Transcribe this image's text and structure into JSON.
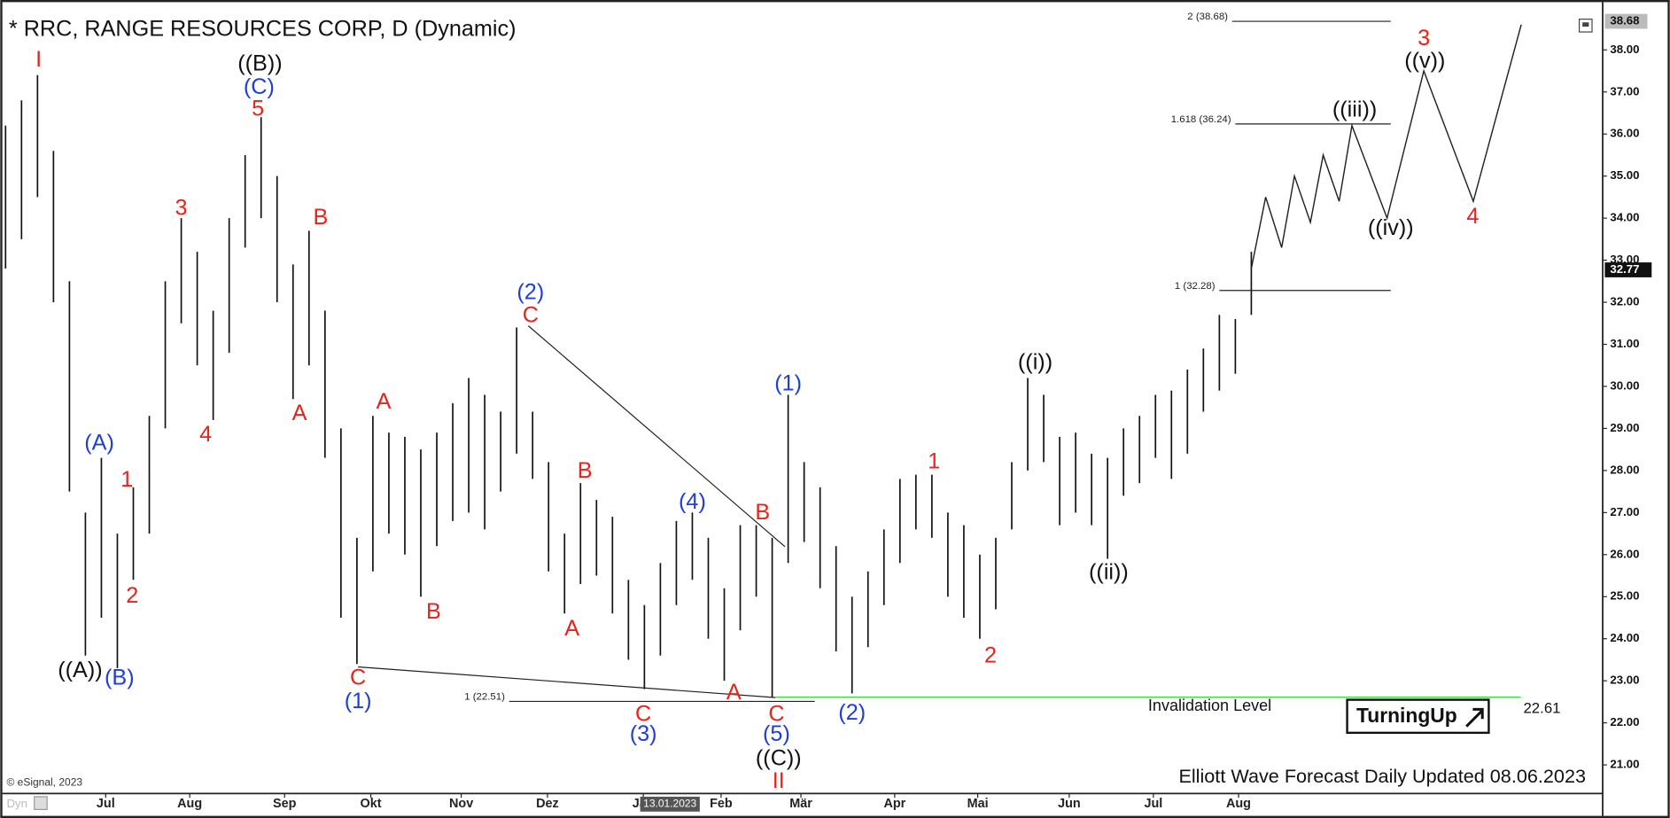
{
  "chart_data": {
    "type": "ohlc",
    "title": "* RRC, RANGE RESOURCES CORP, D (Dynamic)",
    "copyright": "© eSignal, 2023",
    "footer": "Elliott Wave Forecast Daily Updated 08.06.2023",
    "logo": "TurningUp",
    "corner_label": "Dyn",
    "xlim": [
      0,
      100
    ],
    "ylim": [
      20.32,
      39.06
    ],
    "yticks": [
      {
        "value": 21,
        "label": "21.00"
      },
      {
        "value": 22,
        "label": "22.00"
      },
      {
        "value": 23,
        "label": "23.00"
      },
      {
        "value": 24,
        "label": "24.00"
      },
      {
        "value": 25,
        "label": "25.00"
      },
      {
        "value": 26,
        "label": "26.00"
      },
      {
        "value": 27,
        "label": "27.00"
      },
      {
        "value": 28,
        "label": "28.00"
      },
      {
        "value": 29,
        "label": "29.00"
      },
      {
        "value": 30,
        "label": "30.00"
      },
      {
        "value": 31,
        "label": "31.00"
      },
      {
        "value": 32,
        "label": "32.00"
      },
      {
        "value": 33,
        "label": "33.00"
      },
      {
        "value": 34,
        "label": "34.00"
      },
      {
        "value": 35,
        "label": "35.00"
      },
      {
        "value": 36,
        "label": "36.00"
      },
      {
        "value": 37,
        "label": "37.00"
      },
      {
        "value": 38,
        "label": "38.00"
      }
    ],
    "xticks": [
      {
        "value": 6.27,
        "label": "Jul"
      },
      {
        "value": 11.53,
        "label": "Aug"
      },
      {
        "value": 17.47,
        "label": "Sep"
      },
      {
        "value": 22.87,
        "label": "Okt"
      },
      {
        "value": 28.53,
        "label": "Nov"
      },
      {
        "value": 33.93,
        "label": "Dez"
      },
      {
        "value": 39.93,
        "label": "Jan"
      },
      {
        "value": 44.8,
        "label": "Feb"
      },
      {
        "value": 49.8,
        "label": "Mär"
      },
      {
        "value": 55.67,
        "label": "Apr"
      },
      {
        "value": 60.87,
        "label": "Mai"
      },
      {
        "value": 66.6,
        "label": "Jun"
      },
      {
        "value": 71.87,
        "label": "Jul"
      },
      {
        "value": 77.2,
        "label": "Aug"
      }
    ],
    "cursor_date": {
      "label": "13.01.2023",
      "x": 41.6
    },
    "bar_color": "#111111",
    "low": [
      32.8,
      33.5,
      34.5,
      32.0,
      27.5,
      23.6,
      24.5,
      23.3,
      25.4,
      26.5,
      29.0,
      31.5,
      30.5,
      29.2,
      30.8,
      33.3,
      34.0,
      32.0,
      29.7,
      30.5,
      28.3,
      24.5,
      23.4,
      25.6,
      26.5,
      26.0,
      25.0,
      26.2,
      26.8,
      27.0,
      26.6,
      27.5,
      28.4,
      27.8,
      25.6,
      24.6,
      25.3,
      25.5,
      24.6,
      23.5,
      22.8,
      23.6,
      24.8,
      25.4,
      24.0,
      23.0,
      24.2,
      25.0,
      22.6,
      25.8,
      26.3,
      25.2,
      23.7,
      22.7,
      23.8,
      24.8,
      25.8,
      26.6,
      26.4,
      25.0,
      24.5,
      24.0,
      24.7,
      26.6,
      28.0,
      28.2,
      26.7,
      27.0,
      26.7,
      25.9,
      27.4,
      27.7,
      28.3,
      27.8,
      28.4,
      29.4,
      29.9,
      30.3,
      31.7
    ],
    "high": [
      36.2,
      36.8,
      37.4,
      35.6,
      32.5,
      27.0,
      28.3,
      26.5,
      27.6,
      29.3,
      32.5,
      34.0,
      33.2,
      31.8,
      34.0,
      35.5,
      36.4,
      35.0,
      32.9,
      33.7,
      31.8,
      29.0,
      26.4,
      29.3,
      28.9,
      28.8,
      28.5,
      28.9,
      29.6,
      30.2,
      29.8,
      29.4,
      31.4,
      29.4,
      28.2,
      26.5,
      27.7,
      27.3,
      26.9,
      25.4,
      24.8,
      25.8,
      26.8,
      27.0,
      26.4,
      25.2,
      26.7,
      26.7,
      26.4,
      29.8,
      28.2,
      27.6,
      26.2,
      25.0,
      25.6,
      26.6,
      27.8,
      27.9,
      27.9,
      27.0,
      26.7,
      26.0,
      26.4,
      28.2,
      30.2,
      29.8,
      28.8,
      28.9,
      28.4,
      28.3,
      29.0,
      29.3,
      29.8,
      29.9,
      30.4,
      30.9,
      31.7,
      31.6,
      33.2
    ],
    "last_price": 32.77,
    "axis_marker": 38.68,
    "forecast": {
      "color": "#222222",
      "x": [
        78,
        78.9,
        79.9,
        80.7,
        81.7,
        82.5,
        83.5,
        84.3,
        86.5,
        88.8,
        91.9,
        94.9
      ],
      "y": [
        32.8,
        34.5,
        33.3,
        35.0,
        33.9,
        35.5,
        34.4,
        36.2,
        34.0,
        37.5,
        34.4,
        38.6
      ]
    },
    "trendlines": [
      {
        "x": [
          22.07,
          48.2
        ],
        "y": [
          23.33,
          22.6
        ]
      },
      {
        "x": [
          32.73,
          48.8
        ],
        "y": [
          31.44,
          26.19
        ]
      }
    ],
    "fib_levels": [
      {
        "label": "2 (38.68)",
        "value": 38.68,
        "x": [
          76.8,
          86.73
        ]
      },
      {
        "label": "1.618 (36.24)",
        "value": 36.24,
        "x": [
          77.0,
          86.73
        ]
      },
      {
        "label": "1 (32.28)",
        "value": 32.28,
        "x": [
          76.0,
          86.73
        ]
      },
      {
        "label": "1 (22.51)",
        "value": 22.51,
        "x": [
          31.53,
          50.67
        ]
      }
    ],
    "invalidation": {
      "text": "Invalidation Level",
      "value": 22.61,
      "color": "#3ddc3d",
      "x": [
        48.2,
        94.87
      ]
    },
    "annotations": [
      {
        "text": "I",
        "x": 2.07,
        "y": 37.75,
        "color": "#e8231c"
      },
      {
        "text": "((A))",
        "x": 4.67,
        "y": 23.23,
        "color": "#111111"
      },
      {
        "text": "(A)",
        "x": 5.87,
        "y": 28.63,
        "color": "#1f3fd6"
      },
      {
        "text": "(B)",
        "x": 7.13,
        "y": 23.05,
        "color": "#1f3fd6"
      },
      {
        "text": "1",
        "x": 7.6,
        "y": 27.76,
        "color": "#e8231c"
      },
      {
        "text": "2",
        "x": 7.93,
        "y": 25.0,
        "color": "#e8231c"
      },
      {
        "text": "3",
        "x": 11.0,
        "y": 34.22,
        "color": "#e8231c"
      },
      {
        "text": "4",
        "x": 12.53,
        "y": 28.83,
        "color": "#e8231c"
      },
      {
        "text": "((B))",
        "x": 15.93,
        "y": 37.65,
        "color": "#111111"
      },
      {
        "text": "(C)",
        "x": 15.87,
        "y": 37.09,
        "color": "#1f3fd6"
      },
      {
        "text": "5",
        "x": 15.8,
        "y": 36.58,
        "color": "#e8231c"
      },
      {
        "text": "B",
        "x": 19.73,
        "y": 34.0,
        "color": "#e8231c"
      },
      {
        "text": "A",
        "x": 18.4,
        "y": 29.34,
        "color": "#e8231c"
      },
      {
        "text": "C",
        "x": 22.07,
        "y": 23.05,
        "color": "#e8231c"
      },
      {
        "text": "(1)",
        "x": 22.07,
        "y": 22.49,
        "color": "#1f3fd6"
      },
      {
        "text": "A",
        "x": 23.67,
        "y": 29.61,
        "color": "#e8231c"
      },
      {
        "text": "B",
        "x": 26.8,
        "y": 24.62,
        "color": "#e8231c"
      },
      {
        "text": "(2)",
        "x": 32.87,
        "y": 32.22,
        "color": "#1f3fd6"
      },
      {
        "text": "C",
        "x": 32.87,
        "y": 31.67,
        "color": "#e8231c"
      },
      {
        "text": "B",
        "x": 36.27,
        "y": 27.97,
        "color": "#e8231c"
      },
      {
        "text": "A",
        "x": 35.47,
        "y": 24.22,
        "color": "#e8231c"
      },
      {
        "text": "C",
        "x": 39.93,
        "y": 22.19,
        "color": "#e8231c"
      },
      {
        "text": "(3)",
        "x": 39.93,
        "y": 21.71,
        "color": "#1f3fd6"
      },
      {
        "text": "(4)",
        "x": 43.0,
        "y": 27.23,
        "color": "#1f3fd6"
      },
      {
        "text": "A",
        "x": 45.6,
        "y": 22.7,
        "color": "#e8231c"
      },
      {
        "text": "B",
        "x": 47.4,
        "y": 26.98,
        "color": "#e8231c"
      },
      {
        "text": "C",
        "x": 48.27,
        "y": 22.19,
        "color": "#e8231c"
      },
      {
        "text": "(5)",
        "x": 48.27,
        "y": 21.71,
        "color": "#1f3fd6"
      },
      {
        "text": "((C))",
        "x": 48.4,
        "y": 21.13,
        "color": "#111111"
      },
      {
        "text": "II",
        "x": 48.4,
        "y": 20.59,
        "color": "#e8231c"
      },
      {
        "text": "(1)",
        "x": 49.0,
        "y": 30.04,
        "color": "#1f3fd6"
      },
      {
        "text": "(2)",
        "x": 53.0,
        "y": 22.22,
        "color": "#1f3fd6"
      },
      {
        "text": "1",
        "x": 58.13,
        "y": 28.19,
        "color": "#e8231c"
      },
      {
        "text": "2",
        "x": 61.67,
        "y": 23.58,
        "color": "#e8231c"
      },
      {
        "text": "((i))",
        "x": 64.47,
        "y": 30.55,
        "color": "#111111"
      },
      {
        "text": "((ii))",
        "x": 69.07,
        "y": 25.56,
        "color": "#111111"
      },
      {
        "text": "((iii))",
        "x": 84.47,
        "y": 36.56,
        "color": "#111111"
      },
      {
        "text": "((iv))",
        "x": 86.73,
        "y": 33.74,
        "color": "#111111"
      },
      {
        "text": "((v))",
        "x": 88.87,
        "y": 37.72,
        "color": "#111111"
      },
      {
        "text": "3",
        "x": 88.8,
        "y": 38.25,
        "color": "#e8231c"
      },
      {
        "text": "4",
        "x": 91.87,
        "y": 34.02,
        "color": "#e8231c"
      }
    ]
  }
}
